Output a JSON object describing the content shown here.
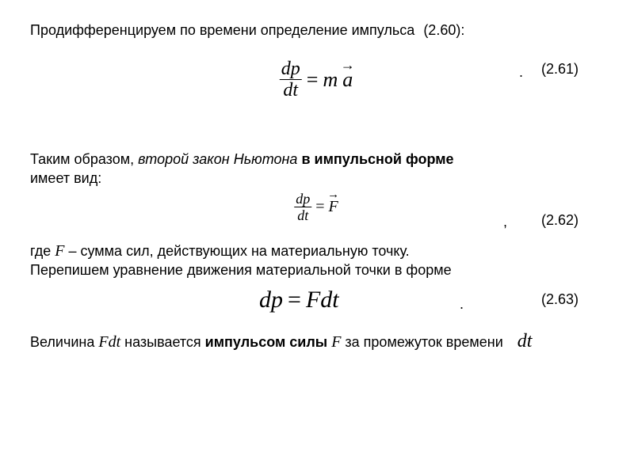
{
  "intro": {
    "text": "Продифференцируем по времени определение импульса",
    "ref": "(2.60):"
  },
  "eq1": {
    "frac_num": "dp",
    "frac_den": "dt",
    "eq": "=",
    "rhs_m": "m",
    "rhs_a": "a",
    "arrow": "→",
    "dot": ".",
    "number": "(2.61)"
  },
  "para2": {
    "lead": "Таким образом, ",
    "italic": "второй закон Ньютона",
    "bold": " в импульсной форме",
    "tail": "имеет вид:"
  },
  "eq2": {
    "frac_num": "dp",
    "frac_den": "dt",
    "eq": "=",
    "rhs_F": "F",
    "arrow": "→",
    "comma": ",",
    "number": "(2.62)"
  },
  "where": {
    "pre": "где  ",
    "F": "F",
    "post": " – сумма сил, действующих на материальную точку."
  },
  "rewrite": "Перепишем уравнение движения материальной точки в форме",
  "eq3": {
    "lhs": "dp",
    "eq": "=",
    "rhs": "Fdt",
    "dot": ".",
    "number": "(2.63)"
  },
  "last": {
    "pre": "Величина ",
    "Fdt": "Fdt",
    "mid1": " называется ",
    "bold": "импульсом силы",
    "spaceF_pre": "  ",
    "F": "F",
    "mid2": " за промежуток времени",
    "dt": "dt"
  }
}
